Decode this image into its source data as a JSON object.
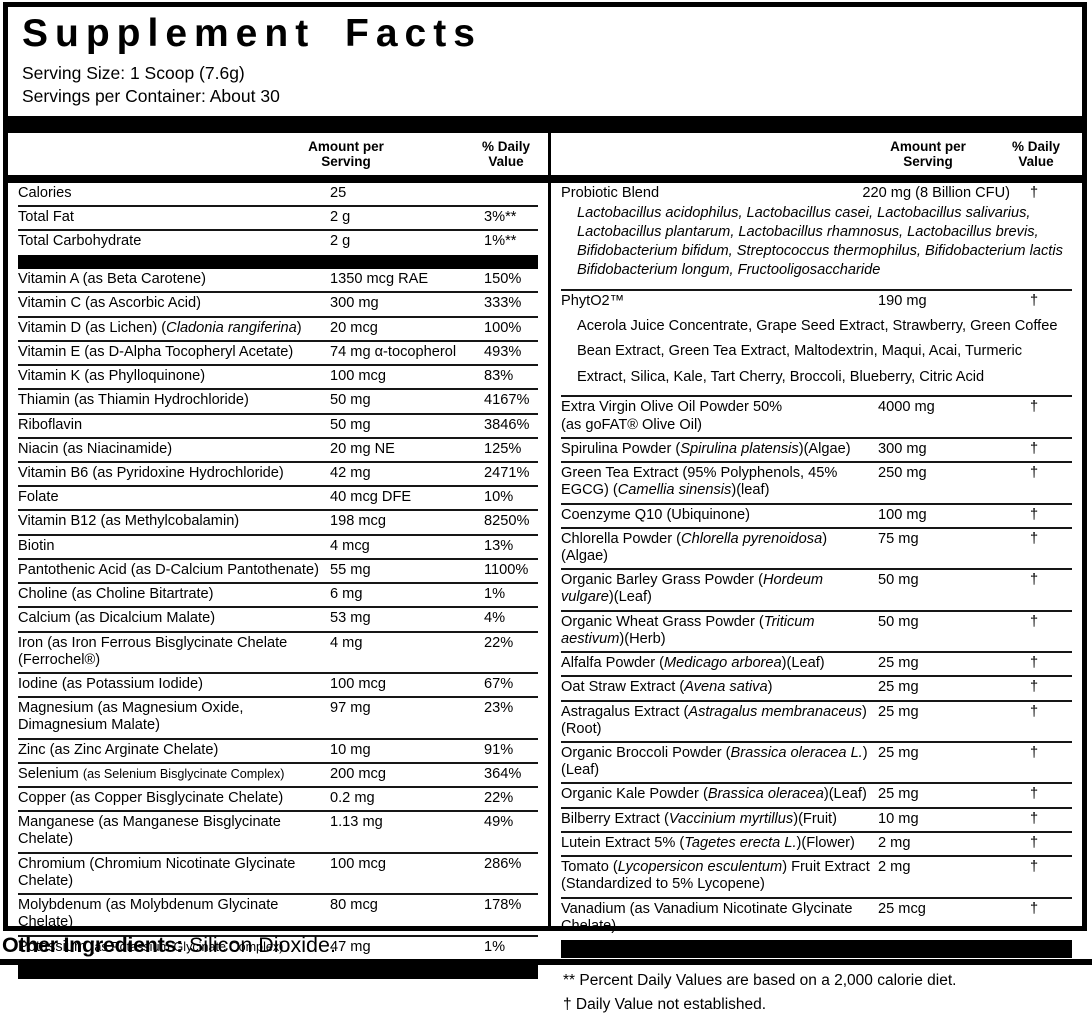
{
  "title": "Supplement Facts",
  "serving_size": "Serving Size: 1 Scoop (7.6g)",
  "servings_per_container": "Servings per Container: About 30",
  "column_headers": {
    "amount": "Amount per\nServing",
    "dv": "% Daily\nValue"
  },
  "left_column": {
    "rows": [
      {
        "name": "Calories",
        "amount": "25",
        "dv": ""
      },
      {
        "name": "Total Fat",
        "amount": "2 g",
        "dv": "3%**"
      },
      {
        "name": "Total Carbohydrate",
        "amount": "2 g",
        "dv": "1%**"
      },
      {
        "bar": "mid"
      },
      {
        "name": "Vitamin A (as Beta Carotene)",
        "amount": "1350 mcg RAE",
        "dv": "150%"
      },
      {
        "name": "Vitamin C (as Ascorbic Acid)",
        "amount": "300 mg",
        "dv": "333%"
      },
      {
        "name": "Vitamin D (as Lichen) (*Cladonia rangiferina*)",
        "amount": "20 mcg",
        "dv": "100%"
      },
      {
        "name": "Vitamin E (as D-Alpha Tocopheryl Acetate)",
        "amount": "74 mg α-tocopherol",
        "dv": "493%"
      },
      {
        "name": "Vitamin K (as Phylloquinone)",
        "amount": "100 mcg",
        "dv": "83%"
      },
      {
        "name": "Thiamin (as Thiamin Hydrochloride)",
        "amount": "50 mg",
        "dv": "4167%"
      },
      {
        "name": "Riboflavin",
        "amount": "50 mg",
        "dv": "3846%"
      },
      {
        "name": "Niacin (as Niacinamide)",
        "amount": "20 mg NE",
        "dv": "125%"
      },
      {
        "name": "Vitamin B6 (as Pyridoxine Hydrochloride)",
        "amount": "42 mg",
        "dv": "2471%"
      },
      {
        "name": "Folate",
        "amount": "40 mcg DFE",
        "dv": "10%"
      },
      {
        "name": "Vitamin B12 (as Methylcobalamin)",
        "amount": "198 mcg",
        "dv": "8250%"
      },
      {
        "name": "Biotin",
        "amount": "4 mcg",
        "dv": "13%"
      },
      {
        "name": "Pantothenic Acid (as D-Calcium Pantothenate)",
        "amount": "55 mg",
        "dv": "1100%"
      },
      {
        "name": "Choline (as Choline Bitartrate)",
        "amount": "6 mg",
        "dv": "1%"
      },
      {
        "name": "Calcium (as Dicalcium Malate)",
        "amount": "53 mg",
        "dv": "4%"
      },
      {
        "name": "Iron (as Iron Ferrous Bisglycinate Chelate (Ferrochel®)",
        "amount": "4 mg",
        "dv": "22%"
      },
      {
        "name": "Iodine (as Potassium Iodide)",
        "amount": "100 mcg",
        "dv": "67%"
      },
      {
        "name": "Magnesium (as Magnesium Oxide, Dimagnesium Malate)",
        "amount": "97 mg",
        "dv": "23%"
      },
      {
        "name": "Zinc (as Zinc Arginate Chelate)",
        "amount": "10 mg",
        "dv": "91%"
      },
      {
        "name": "Selenium ~(as Selenium Bisglycinate Complex)~",
        "amount": "200 mcg",
        "dv": "364%"
      },
      {
        "name": "Copper (as Copper Bisglycinate Chelate)",
        "amount": "0.2 mg",
        "dv": "22%"
      },
      {
        "name": "Manganese (as Manganese Bisglycinate Chelate)",
        "amount": "1.13 mg",
        "dv": "49%"
      },
      {
        "name": "Chromium (Chromium Nicotinate Glycinate Chelate)",
        "amount": "100 mcg",
        "dv": "286%"
      },
      {
        "name": "Molybdenum (as Molybdenum Glycinate Chelate)",
        "amount": "80 mcg",
        "dv": "178%"
      },
      {
        "name": "Potassium ~(as Potassium Glycinate Complex)~",
        "amount": "47 mg",
        "dv": "1%"
      },
      {
        "bar": "tall"
      }
    ]
  },
  "right_column": {
    "rows": [
      {
        "name": "Probiotic Blend",
        "amount": "220 mg (8 Billion CFU)",
        "dv": "†",
        "amount_end": true,
        "sub": "Lactobacillus acidophilus, Lactobacillus casei, Lactobacillus salivarius, Lactobacillus plantarum, Lactobacillus rhamnosus, Lactobacillus brevis, Bifidobacterium bifidum, Streptococcus thermophilus, Bifidobacterium lactis Bifidobacterium longum, Fructooligosaccharide",
        "sub_italic": true
      },
      {
        "name": "PhytO2™",
        "amount": "190 mg",
        "dv": "†",
        "sub": "Acerola Juice Concentrate, Grape Seed Extract, Strawberry, Green Coffee Bean Extract, Green Tea Extract, Maltodextrin, Maqui, Acai, Turmeric Extract, Silica, Kale, Tart Cherry, Broccoli, Blueberry, Citric Acid",
        "sub_airy": true
      },
      {
        "name": "Extra Virgin Olive Oil Powder 50%\n(as goFAT® Olive Oil)",
        "amount": "4000 mg",
        "dv": "†"
      },
      {
        "name": "Spirulina Powder (*Spirulina platensis*)(Algae)",
        "amount": "300 mg",
        "dv": "†"
      },
      {
        "name": "Green Tea Extract (95% Polyphenols, 45% EGCG) (*Camellia sinensis*)(leaf)",
        "amount": "250 mg",
        "dv": "†"
      },
      {
        "name": "Coenzyme Q10 (Ubiquinone)",
        "amount": "100 mg",
        "dv": "†"
      },
      {
        "name": "Chlorella Powder (*Chlorella pyrenoidosa*)(Algae)",
        "amount": "75 mg",
        "dv": "†"
      },
      {
        "name": "Organic Barley Grass Powder (*Hordeum vulgare*)(Leaf)",
        "amount": "50 mg",
        "dv": "†"
      },
      {
        "name": "Organic Wheat Grass Powder (*Triticum aestivum*)(Herb)",
        "amount": "50 mg",
        "dv": "†"
      },
      {
        "name": "Alfalfa Powder (*Medicago arborea*)(Leaf)",
        "amount": "25 mg",
        "dv": "†"
      },
      {
        "name": "Oat Straw Extract (*Avena sativa*)",
        "amount": "25 mg",
        "dv": "†"
      },
      {
        "name": "Astragalus Extract (*Astragalus membranaceus*)(Root)",
        "amount": "25 mg",
        "dv": "†"
      },
      {
        "name": "Organic Broccoli Powder (*Brassica oleracea L.*)(Leaf)",
        "amount": "25 mg",
        "dv": "†"
      },
      {
        "name": "Organic Kale Powder (*Brassica oleracea*)(Leaf)",
        "amount": "25 mg",
        "dv": "†"
      },
      {
        "name": "Bilberry Extract (*Vaccinium myrtillus*)(Fruit)",
        "amount": "10 mg",
        "dv": "†"
      },
      {
        "name": "Lutein Extract 5% (*Tagetes erecta L.*)(Flower)",
        "amount": "2 mg",
        "dv": "†"
      },
      {
        "name": "Tomato (*Lycopersicon esculentum*) Fruit Extract (Standardized to 5% Lycopene)",
        "amount": "2 mg",
        "dv": "†"
      },
      {
        "name": "Vanadium (as Vanadium Nicotinate Glycinate Chelate)",
        "amount": "25 mcg",
        "dv": "†"
      },
      {
        "bar": "tall"
      }
    ],
    "footnotes": [
      "** Percent Daily Values are based on a 2,000 calorie diet.",
      "† Daily Value not established."
    ]
  },
  "other_ingredients": {
    "label": "Other Ingredients:",
    "value": "Silicon Dioxide."
  },
  "colors": {
    "ink": "#000000",
    "background": "#ffffff"
  }
}
